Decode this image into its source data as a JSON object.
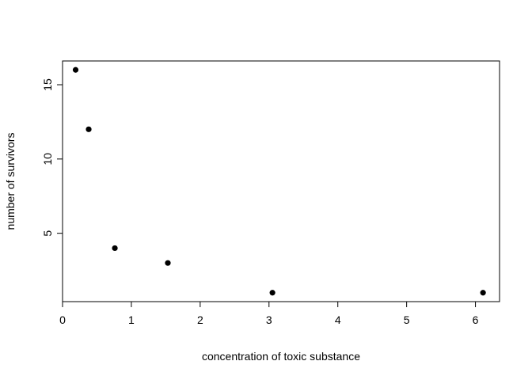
{
  "chart_data": {
    "type": "scatter",
    "title": "",
    "xlabel": "concentration of toxic substance",
    "ylabel": "number of survivors",
    "xlim": [
      0.0,
      6.35
    ],
    "ylim": [
      0.4,
      16.6
    ],
    "xticks": [
      0,
      1,
      2,
      3,
      4,
      5,
      6
    ],
    "yticks": [
      5,
      10,
      15
    ],
    "grid": false,
    "legend": "none",
    "point_color": "#000000",
    "points": [
      {
        "x": 0.19,
        "y": 16
      },
      {
        "x": 0.38,
        "y": 12
      },
      {
        "x": 0.76,
        "y": 4
      },
      {
        "x": 1.53,
        "y": 3
      },
      {
        "x": 3.05,
        "y": 1
      },
      {
        "x": 6.11,
        "y": 1
      }
    ]
  }
}
